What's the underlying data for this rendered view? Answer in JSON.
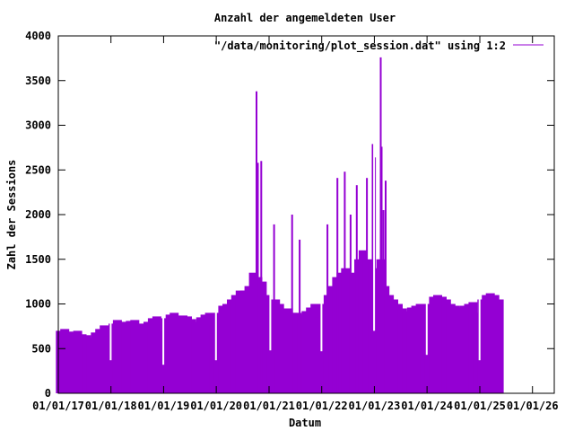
{
  "chart_data": {
    "type": "bar",
    "title": "Anzahl der angemeldeten User",
    "xlabel": "Datum",
    "ylabel": "Zahl der Sessions",
    "legend": {
      "label": "\"/data/monitoring/plot_session.dat\" using 1:2",
      "placement": "top-right"
    },
    "color": "#9400D3",
    "xlim": [
      "2017-01-01",
      "2026-06-01"
    ],
    "ylim": [
      0,
      4000
    ],
    "yticks": [
      0,
      500,
      1000,
      1500,
      2000,
      2500,
      3000,
      3500,
      4000
    ],
    "xticks": [
      "01/01/17",
      "01/01/18",
      "01/01/19",
      "01/01/20",
      "01/01/21",
      "01/01/22",
      "01/01/23",
      "01/01/24",
      "01/01/25",
      "01/01/26"
    ],
    "grid": false,
    "points": [
      [
        "2017-01-15",
        700
      ],
      [
        "2017-02-15",
        720
      ],
      [
        "2017-03-15",
        690
      ],
      [
        "2017-04-15",
        680
      ],
      [
        "2017-05-15",
        700
      ],
      [
        "2017-06-15",
        660
      ],
      [
        "2017-07-15",
        650
      ],
      [
        "2017-08-15",
        620
      ],
      [
        "2017-09-15",
        680
      ],
      [
        "2017-10-15",
        720
      ],
      [
        "2017-11-15",
        760
      ],
      [
        "2017-12-15",
        640
      ],
      [
        "2018-01-15",
        780
      ],
      [
        "2018-02-15",
        820
      ],
      [
        "2018-03-15",
        800
      ],
      [
        "2018-04-15",
        790
      ],
      [
        "2018-05-15",
        810
      ],
      [
        "2018-06-15",
        820
      ],
      [
        "2018-07-15",
        780
      ],
      [
        "2018-08-15",
        740
      ],
      [
        "2018-09-15",
        800
      ],
      [
        "2018-10-15",
        840
      ],
      [
        "2018-11-15",
        860
      ],
      [
        "2018-12-15",
        700
      ],
      [
        "2019-01-15",
        840
      ],
      [
        "2019-02-15",
        880
      ],
      [
        "2019-03-15",
        900
      ],
      [
        "2019-04-15",
        860
      ],
      [
        "2019-05-15",
        870
      ],
      [
        "2019-06-15",
        860
      ],
      [
        "2019-07-15",
        830
      ],
      [
        "2019-08-15",
        800
      ],
      [
        "2019-09-15",
        850
      ],
      [
        "2019-10-15",
        880
      ],
      [
        "2019-11-15",
        900
      ],
      [
        "2019-12-15",
        760
      ],
      [
        "2020-01-15",
        900
      ],
      [
        "2020-02-15",
        980
      ],
      [
        "2020-03-15",
        1000
      ],
      [
        "2020-04-15",
        1050
      ],
      [
        "2020-05-15",
        1100
      ],
      [
        "2020-06-15",
        1150
      ],
      [
        "2020-07-15",
        1150
      ],
      [
        "2020-08-15",
        1200
      ],
      [
        "2020-09-15",
        1350
      ],
      [
        "2020-10-15",
        1300
      ],
      [
        "2020-11-15",
        1250
      ],
      [
        "2020-12-15",
        1100
      ],
      [
        "2021-01-15",
        1000
      ],
      [
        "2021-02-15",
        1050
      ],
      [
        "2021-03-15",
        1000
      ],
      [
        "2021-04-15",
        950
      ],
      [
        "2021-05-15",
        950
      ],
      [
        "2021-06-15",
        900
      ],
      [
        "2021-07-15",
        900
      ],
      [
        "2021-08-15",
        880
      ],
      [
        "2021-09-15",
        920
      ],
      [
        "2021-10-15",
        960
      ],
      [
        "2021-11-15",
        1000
      ],
      [
        "2021-12-15",
        850
      ],
      [
        "2022-01-15",
        1000
      ],
      [
        "2022-02-15",
        1100
      ],
      [
        "2022-03-15",
        1200
      ],
      [
        "2022-04-15",
        1300
      ],
      [
        "2022-05-15",
        1350
      ],
      [
        "2022-06-15",
        1400
      ],
      [
        "2022-07-15",
        1300
      ],
      [
        "2022-08-15",
        1350
      ],
      [
        "2022-09-15",
        1500
      ],
      [
        "2022-10-15",
        1600
      ],
      [
        "2022-11-15",
        1500
      ],
      [
        "2022-12-15",
        1300
      ],
      [
        "2023-01-15",
        1400
      ],
      [
        "2023-02-15",
        1500
      ],
      [
        "2023-03-15",
        1200
      ],
      [
        "2023-04-15",
        1100
      ],
      [
        "2023-05-15",
        1050
      ],
      [
        "2023-06-15",
        1000
      ],
      [
        "2023-07-15",
        950
      ],
      [
        "2023-08-15",
        920
      ],
      [
        "2023-09-15",
        960
      ],
      [
        "2023-10-15",
        980
      ],
      [
        "2023-11-15",
        1000
      ],
      [
        "2023-12-15",
        880
      ],
      [
        "2024-01-15",
        1000
      ],
      [
        "2024-02-15",
        1080
      ],
      [
        "2024-03-15",
        1100
      ],
      [
        "2024-04-15",
        1080
      ],
      [
        "2024-05-15",
        1050
      ],
      [
        "2024-06-15",
        1000
      ],
      [
        "2024-07-15",
        980
      ],
      [
        "2024-08-15",
        960
      ],
      [
        "2024-09-15",
        980
      ],
      [
        "2024-10-15",
        1000
      ],
      [
        "2024-11-15",
        1020
      ],
      [
        "2024-12-15",
        900
      ],
      [
        "2025-01-15",
        1050
      ],
      [
        "2025-02-15",
        1100
      ],
      [
        "2025-03-15",
        1120
      ],
      [
        "2025-04-15",
        1100
      ],
      [
        "2025-05-15",
        1050
      ]
    ],
    "spikes": [
      [
        "2020-10-06",
        3380
      ],
      [
        "2020-10-15",
        2580
      ],
      [
        "2020-11-08",
        2600
      ],
      [
        "2020-10-10",
        2070
      ],
      [
        "2021-02-05",
        1890
      ],
      [
        "2021-06-10",
        2000
      ],
      [
        "2021-08-01",
        1720
      ],
      [
        "2022-02-10",
        1890
      ],
      [
        "2022-04-20",
        2410
      ],
      [
        "2022-06-10",
        2480
      ],
      [
        "2022-07-20",
        2000
      ],
      [
        "2022-09-01",
        2330
      ],
      [
        "2022-11-10",
        2410
      ],
      [
        "2022-12-20",
        2790
      ],
      [
        "2023-01-05",
        2640
      ],
      [
        "2023-02-14",
        3760
      ],
      [
        "2023-02-20",
        2760
      ],
      [
        "2023-03-20",
        2380
      ],
      [
        "2023-03-05",
        2050
      ]
    ],
    "dips": [
      [
        "2017-12-30",
        370
      ],
      [
        "2018-12-30",
        320
      ],
      [
        "2019-12-30",
        370
      ],
      [
        "2021-01-10",
        480
      ],
      [
        "2021-12-30",
        470
      ],
      [
        "2022-12-30",
        700
      ],
      [
        "2023-12-30",
        430
      ],
      [
        "2024-12-30",
        370
      ]
    ]
  }
}
